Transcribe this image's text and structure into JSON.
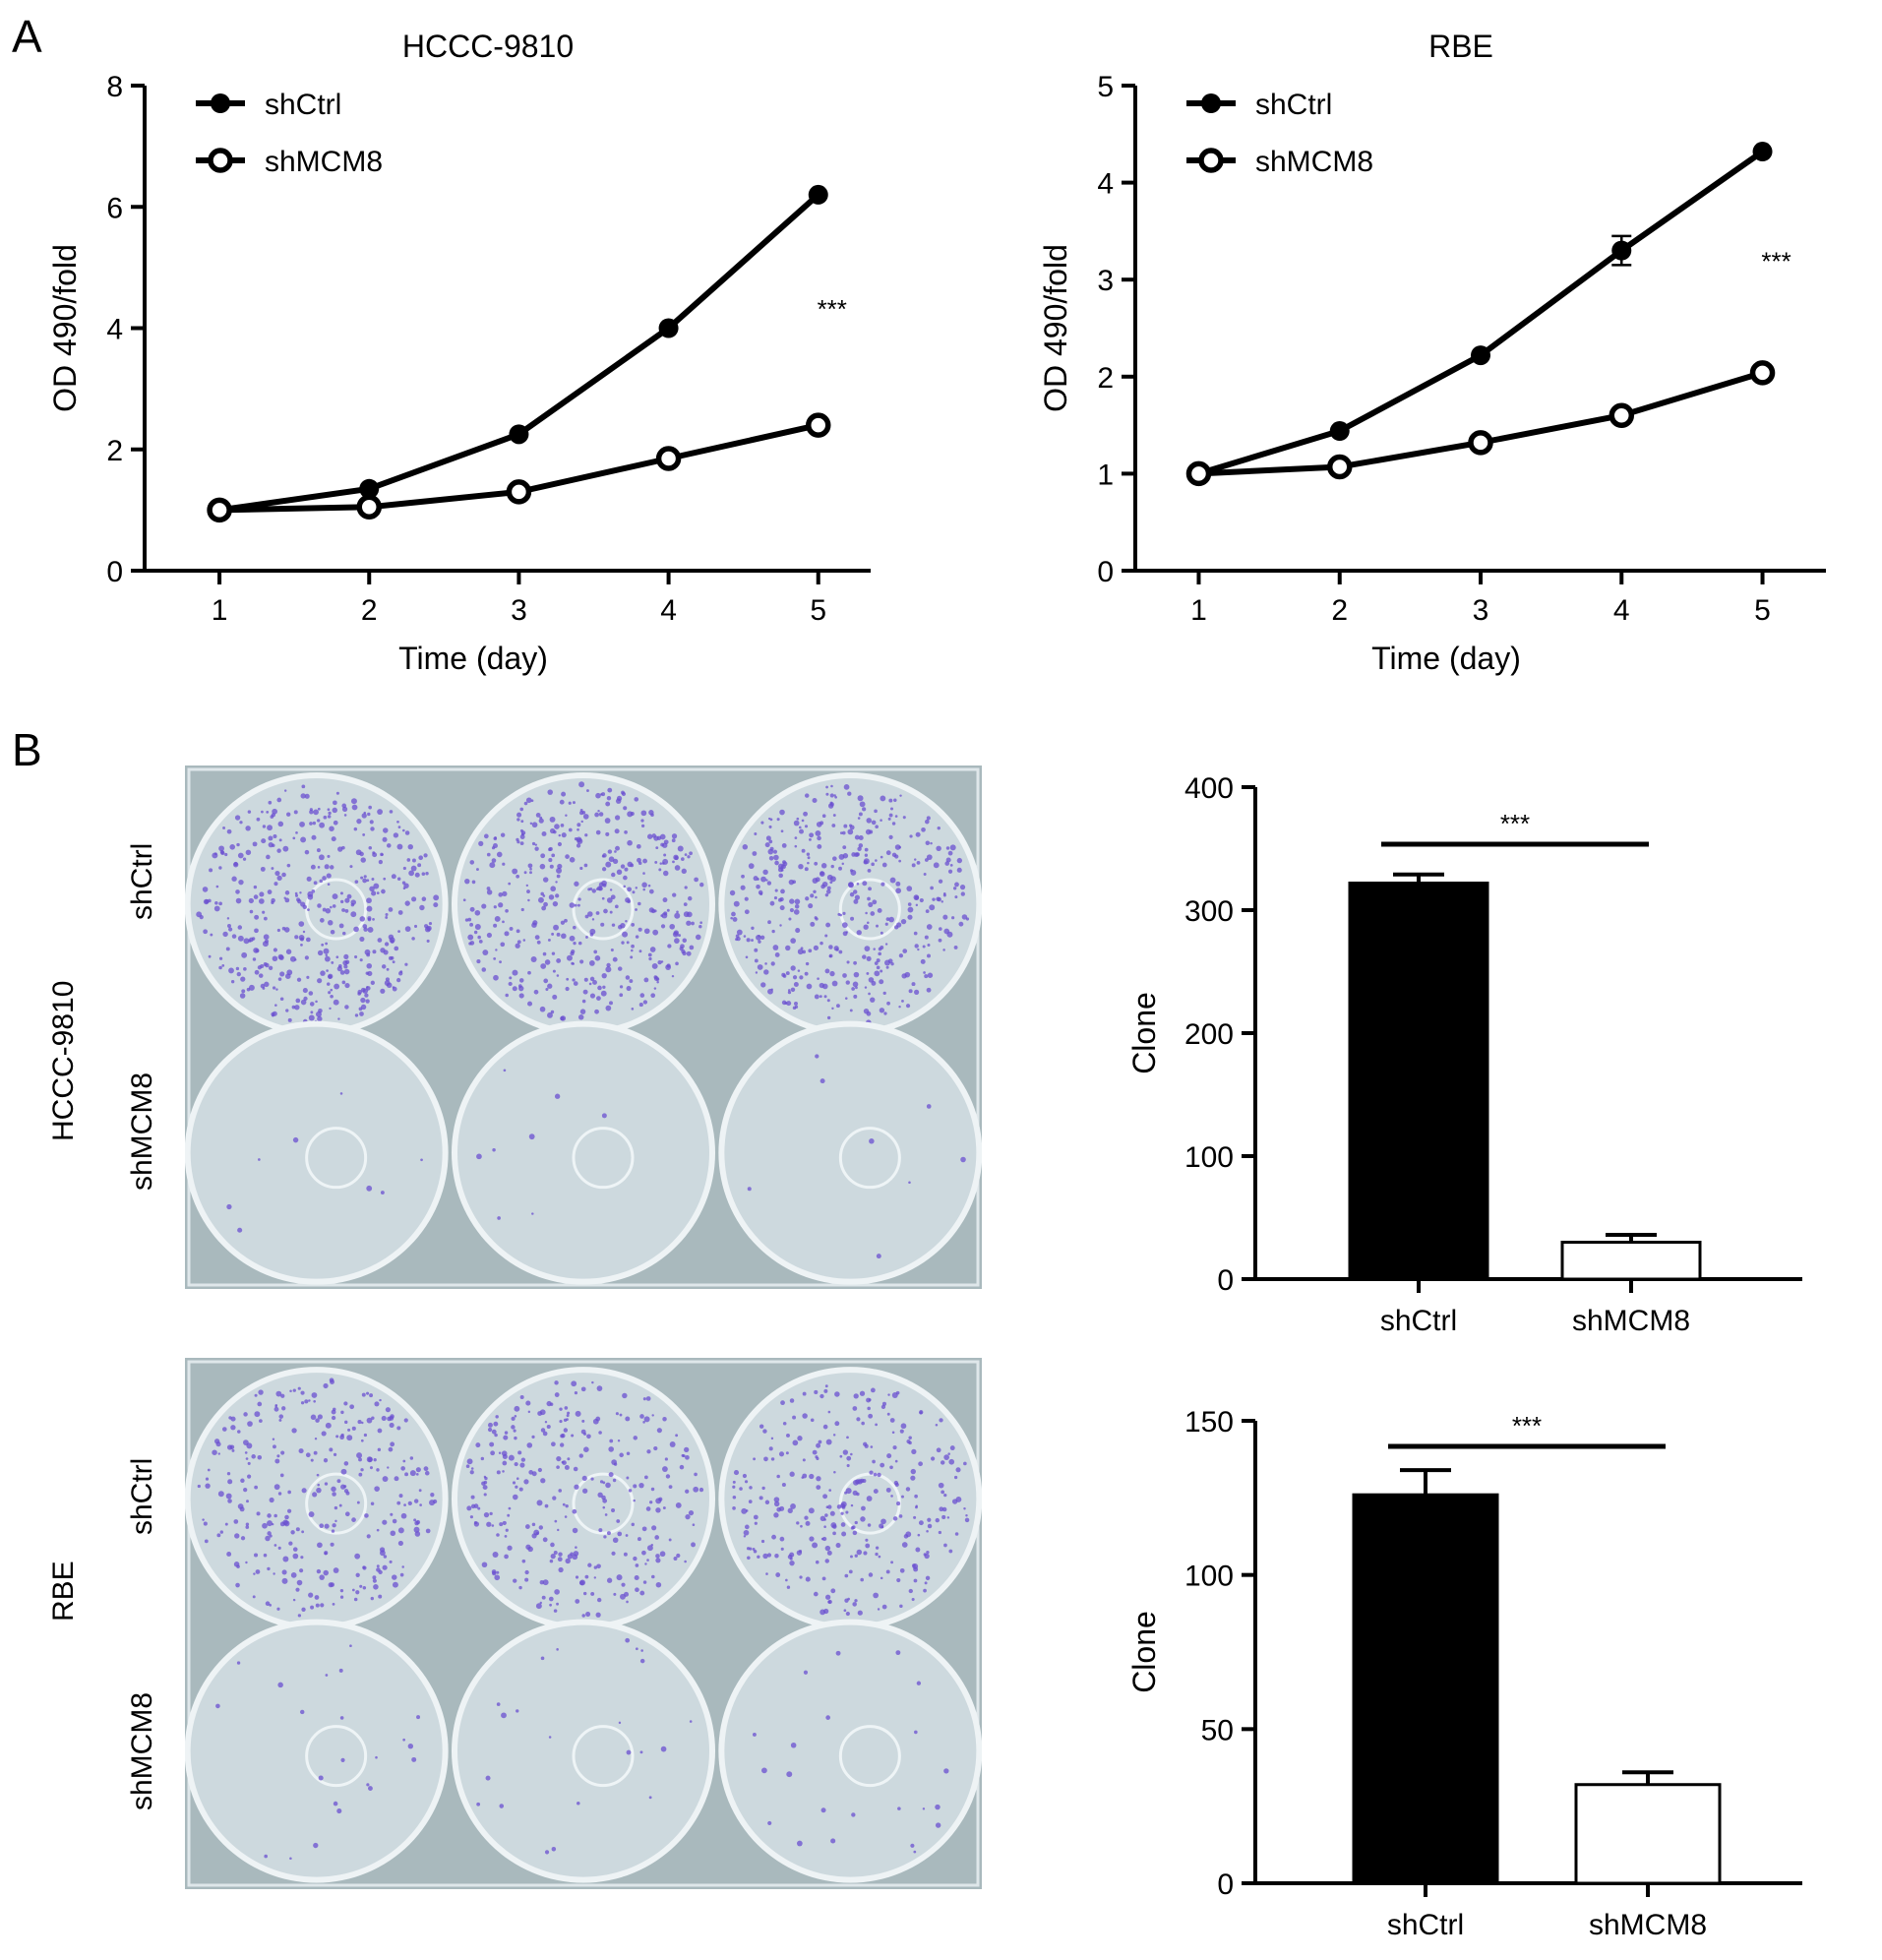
{
  "panels": {
    "A": {
      "letter": "A"
    },
    "B": {
      "letter": "B"
    }
  },
  "plate_rows": {
    "cell_lines": [
      "HCCC-9810",
      "RBE"
    ],
    "groups": [
      "shCtrl",
      "shMCM8"
    ],
    "colors": {
      "plate_bg": "#a9b9bd",
      "well_fill": "#cdd9de",
      "colony": "#6a4fd0",
      "well_rim": "#eef3f5"
    }
  },
  "chart_data": [
    {
      "type": "line",
      "title": "HCCC-9810",
      "xlabel": "Time (day)",
      "ylabel": "OD 490/fold",
      "x": [
        1,
        2,
        3,
        4,
        5
      ],
      "xticks": [
        "1",
        "2",
        "3",
        "4",
        "5"
      ],
      "yticks": [
        "0",
        "2",
        "4",
        "6",
        "8"
      ],
      "ylim": [
        0,
        8
      ],
      "series": [
        {
          "name": "shCtrl",
          "values": [
            1.0,
            1.35,
            2.25,
            4.0,
            6.2
          ],
          "marker": "filled"
        },
        {
          "name": "shMCM8",
          "values": [
            1.0,
            1.05,
            1.3,
            1.85,
            2.4
          ],
          "marker": "open"
        }
      ],
      "annotation": "***",
      "legend": "top-left"
    },
    {
      "type": "line",
      "title": "RBE",
      "xlabel": "Time (day)",
      "ylabel": "OD 490/fold",
      "x": [
        1,
        2,
        3,
        4,
        5
      ],
      "xticks": [
        "1",
        "2",
        "3",
        "4",
        "5"
      ],
      "yticks": [
        "0",
        "1",
        "2",
        "3",
        "4",
        "5"
      ],
      "ylim": [
        0,
        5
      ],
      "series": [
        {
          "name": "shCtrl",
          "values": [
            1.0,
            1.44,
            2.22,
            3.3,
            4.32
          ],
          "errors": [
            0,
            0,
            0,
            0.15,
            0
          ],
          "marker": "filled"
        },
        {
          "name": "shMCM8",
          "values": [
            1.0,
            1.07,
            1.32,
            1.6,
            2.04
          ],
          "marker": "open"
        }
      ],
      "annotation": "***",
      "legend": "top-left"
    },
    {
      "type": "bar",
      "ylabel": "Clone",
      "categories": [
        "shCtrl",
        "shMCM8"
      ],
      "values": [
        322,
        30
      ],
      "errors": [
        7,
        6
      ],
      "yticks": [
        "0",
        "100",
        "200",
        "300",
        "400"
      ],
      "ylim": [
        0,
        400
      ],
      "annotation": "***",
      "fills": [
        "#000000",
        "#ffffff"
      ]
    },
    {
      "type": "bar",
      "ylabel": "Clone",
      "categories": [
        "shCtrl",
        "shMCM8"
      ],
      "values": [
        126,
        32
      ],
      "errors": [
        8,
        4
      ],
      "yticks": [
        "0",
        "50",
        "100",
        "150"
      ],
      "ylim": [
        0,
        150
      ],
      "annotation": "***",
      "fills": [
        "#000000",
        "#ffffff"
      ]
    }
  ]
}
